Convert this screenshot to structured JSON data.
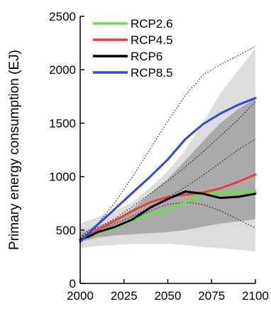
{
  "chart_data": {
    "type": "line",
    "title": "",
    "xlabel": "",
    "ylabel": "Primary energy consumption (EJ)",
    "xlim": [
      2000,
      2100
    ],
    "ylim": [
      0,
      2500
    ],
    "xticks": [
      "2000",
      "2025",
      "2050",
      "2075",
      "2100"
    ],
    "yticks": [
      "0",
      "500",
      "1000",
      "1500",
      "2000",
      "2500"
    ],
    "legend_position": "top-left",
    "series": [
      {
        "name": "RCP2.6",
        "color": "#5ee83a",
        "x": [
          2000,
          2005,
          2010,
          2020,
          2030,
          2040,
          2050,
          2060,
          2070,
          2080,
          2090,
          2100
        ],
        "y": [
          410,
          440,
          470,
          520,
          590,
          650,
          690,
          760,
          830,
          850,
          860,
          865
        ]
      },
      {
        "name": "RCP4.5",
        "color": "#e8432e",
        "x": [
          2000,
          2005,
          2010,
          2020,
          2030,
          2040,
          2050,
          2060,
          2070,
          2080,
          2090,
          2100
        ],
        "y": [
          410,
          450,
          500,
          590,
          680,
          760,
          810,
          830,
          850,
          890,
          950,
          1020
        ]
      },
      {
        "name": "RCP6",
        "color": "#000000",
        "x": [
          2000,
          2005,
          2010,
          2020,
          2030,
          2040,
          2050,
          2060,
          2070,
          2080,
          2090,
          2100
        ],
        "y": [
          410,
          440,
          480,
          530,
          600,
          710,
          790,
          860,
          840,
          800,
          810,
          840
        ]
      },
      {
        "name": "RCP8.5",
        "color": "#2f48e0",
        "x": [
          2000,
          2005,
          2010,
          2020,
          2030,
          2040,
          2050,
          2060,
          2070,
          2080,
          2090,
          2100
        ],
        "y": [
          390,
          470,
          550,
          700,
          850,
          1000,
          1160,
          1350,
          1490,
          1590,
          1670,
          1735
        ]
      }
    ],
    "bands": [
      {
        "color": "#dddddd",
        "x": [
          2000,
          2010,
          2020,
          2030,
          2040,
          2050,
          2060,
          2070,
          2080,
          2090,
          2100
        ],
        "upper": [
          560,
          620,
          680,
          760,
          900,
          1050,
          1250,
          1500,
          1780,
          1990,
          2200
        ],
        "lower": [
          330,
          350,
          360,
          370,
          370,
          370,
          360,
          340,
          330,
          315,
          300
        ]
      },
      {
        "color": "#aaaaaa",
        "x": [
          2000,
          2010,
          2020,
          2030,
          2040,
          2050,
          2060,
          2070,
          2080,
          2090,
          2100
        ],
        "upper": [
          480,
          530,
          600,
          700,
          840,
          980,
          1150,
          1330,
          1500,
          1630,
          1730
        ],
        "lower": [
          390,
          430,
          450,
          460,
          470,
          480,
          500,
          530,
          560,
          580,
          600
        ]
      }
    ],
    "reference_lines": [
      {
        "style": "dotted",
        "x": [
          2000,
          2010,
          2020,
          2030,
          2040,
          2050,
          2060,
          2070,
          2080,
          2090,
          2100
        ],
        "y": [
          430,
          560,
          760,
          1000,
          1260,
          1520,
          1760,
          1950,
          2050,
          2130,
          2220
        ]
      },
      {
        "style": "dotted",
        "x": [
          2000,
          2010,
          2020,
          2030,
          2040,
          2050,
          2060,
          2070,
          2080,
          2090,
          2100
        ],
        "y": [
          430,
          520,
          610,
          720,
          840,
          960,
          1090,
          1230,
          1380,
          1530,
          1700
        ]
      },
      {
        "style": "dotted",
        "x": [
          2000,
          2010,
          2020,
          2030,
          2040,
          2050,
          2060,
          2070,
          2080,
          2090,
          2100
        ],
        "y": [
          430,
          500,
          560,
          630,
          710,
          800,
          900,
          1010,
          1130,
          1250,
          1350
        ]
      },
      {
        "style": "dotted",
        "x": [
          2000,
          2010,
          2020,
          2030,
          2040,
          2050,
          2060,
          2070,
          2080,
          2090,
          2100
        ],
        "y": [
          420,
          470,
          530,
          600,
          680,
          740,
          760,
          740,
          680,
          600,
          520
        ]
      }
    ]
  }
}
